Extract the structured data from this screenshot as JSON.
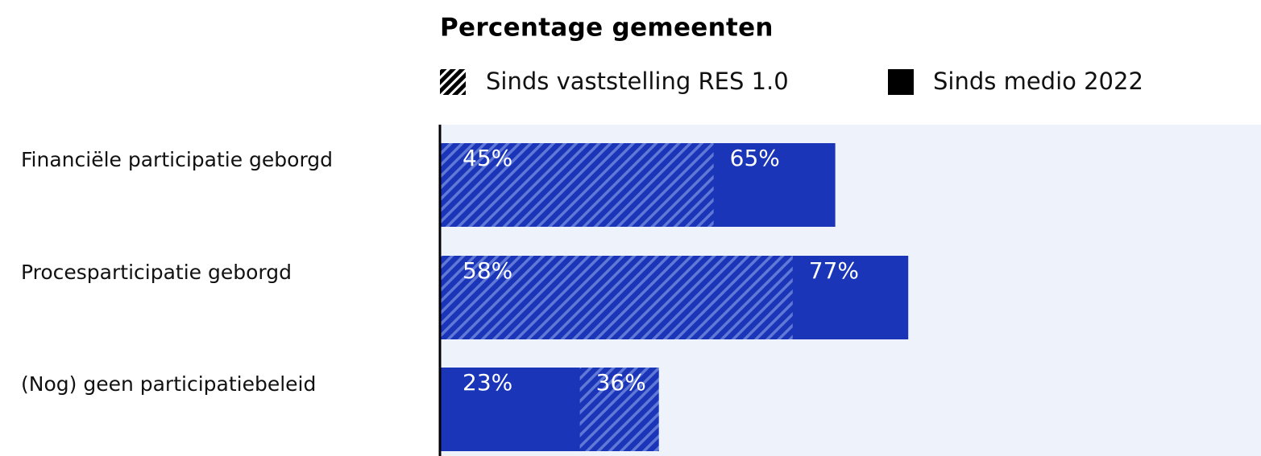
{
  "chart_data": {
    "type": "overlap-hbar",
    "title": "Percentage gemeenten",
    "categories": [
      "Financiële participatie geborgd",
      "Procesparticipatie geborgd",
      "(Nog) geen participatiebeleid"
    ],
    "series": [
      {
        "name": "Sinds vaststelling RES 1.0",
        "color": "#1a35b8",
        "hatch": true,
        "values": [
          45,
          58,
          36
        ],
        "value_labels": [
          "45%",
          "58%",
          "36%"
        ]
      },
      {
        "name": "Sinds medio 2022",
        "color": "#1a35b8",
        "hatch": false,
        "values": [
          65,
          77,
          23
        ],
        "value_labels": [
          "65%",
          "77%",
          "23%"
        ]
      }
    ],
    "xlim": [
      0,
      135
    ]
  }
}
